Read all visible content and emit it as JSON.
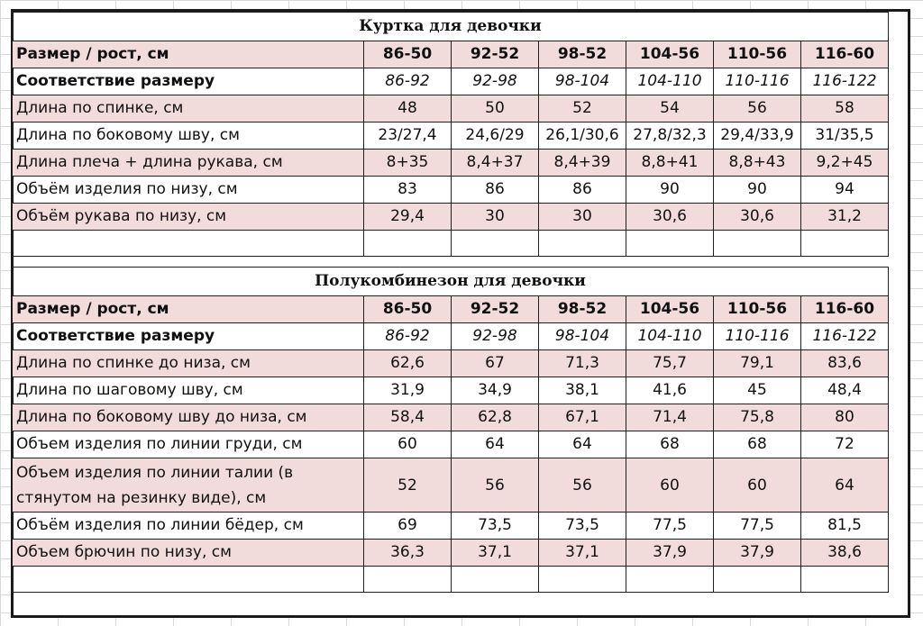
{
  "tables": [
    {
      "title": "Куртка для девочки",
      "header": {
        "label": "Размер / рост, см",
        "sizes": [
          "86-50",
          "92-52",
          "98-52",
          "104-56",
          "110-56",
          "116-60"
        ]
      },
      "fit": {
        "label": "Соответствие размеру",
        "values": [
          "86-92",
          "92-98",
          "98-104",
          "104-110",
          "110-116",
          "116-122"
        ]
      },
      "rows": [
        {
          "label": "Длина по спинке, см",
          "values": [
            "48",
            "50",
            "52",
            "54",
            "56",
            "58"
          ]
        },
        {
          "label": "Длина по боковому шву, см",
          "values": [
            "23/27,4",
            "24,6/29",
            "26,1/30,6",
            "27,8/32,3",
            "29,4/33,9",
            "31/35,5"
          ]
        },
        {
          "label": "Длина плеча + длина рукава, см",
          "values": [
            "8+35",
            "8,4+37",
            "8,4+39",
            "8,8+41",
            "8,8+43",
            "9,2+45"
          ]
        },
        {
          "label": "Объём изделия по низу, см",
          "values": [
            "83",
            "86",
            "86",
            "90",
            "90",
            "94"
          ]
        },
        {
          "label": "Объём рукава по низу, см",
          "values": [
            "29,4",
            "30",
            "30",
            "30,6",
            "30,6",
            "31,2"
          ]
        }
      ]
    },
    {
      "title": "Полукомбинезон для девочки",
      "header": {
        "label": "Размер / рост, см",
        "sizes": [
          "86-50",
          "92-52",
          "98-52",
          "104-56",
          "110-56",
          "116-60"
        ]
      },
      "fit": {
        "label": "Соответствие размеру",
        "values": [
          "86-92",
          "92-98",
          "98-104",
          "104-110",
          "110-116",
          "116-122"
        ]
      },
      "rows": [
        {
          "label": "Длина по спинке до низа, см",
          "values": [
            "62,6",
            "67",
            "71,3",
            "75,7",
            "79,1",
            "83,6"
          ]
        },
        {
          "label": "Длина по шаговому шву, см",
          "values": [
            "31,9",
            "34,9",
            "38,1",
            "41,6",
            "45",
            "48,4"
          ]
        },
        {
          "label": "Длина по боковому шву до низа, см",
          "values": [
            "58,4",
            "62,8",
            "67,1",
            "71,4",
            "75,8",
            "80"
          ]
        },
        {
          "label": "Объем изделия по линии груди, см",
          "values": [
            "60",
            "64",
            "64",
            "68",
            "68",
            "72"
          ]
        },
        {
          "label": "Объем изделия по линии талии (в стянутом на резинку виде), см",
          "values": [
            "52",
            "56",
            "56",
            "60",
            "60",
            "64"
          ]
        },
        {
          "label": "Объём изделия по линии бёдер, см",
          "values": [
            "69",
            "73,5",
            "73,5",
            "77,5",
            "77,5",
            "81,5"
          ]
        },
        {
          "label": "Объем брючин по низу, см",
          "values": [
            "36,3",
            "37,1",
            "37,1",
            "37,9",
            "37,9",
            "38,6"
          ]
        }
      ]
    }
  ]
}
